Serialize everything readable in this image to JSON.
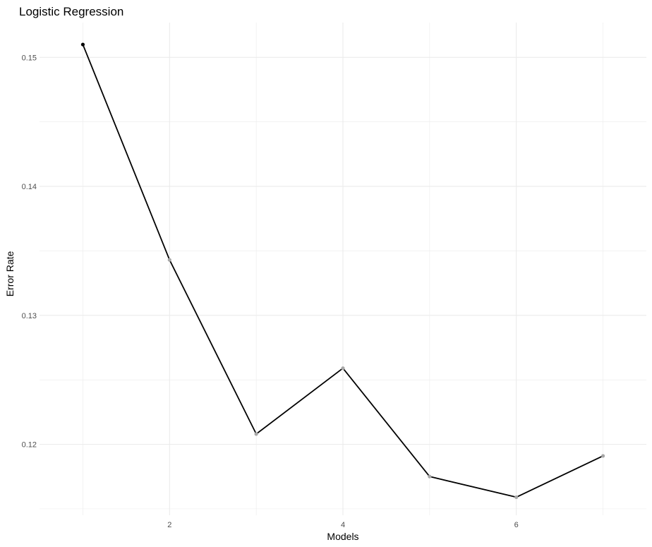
{
  "chart_data": {
    "type": "line",
    "title": "Logistic Regression",
    "xlabel": "Models",
    "ylabel": "Error Rate",
    "x": [
      1,
      2,
      3,
      4,
      5,
      6,
      7
    ],
    "series": [
      {
        "values": [
          0.151,
          0.1343,
          0.1208,
          0.1259,
          0.1175,
          0.1159,
          0.1191
        ]
      }
    ],
    "point_colors": [
      "#000000",
      "#a6a6a6",
      "#a6a6a6",
      "#a6a6a6",
      "#a6a6a6",
      "#a6a6a6",
      "#a6a6a6"
    ],
    "line_color": "#000000",
    "xlim": [
      0.5,
      7.5
    ],
    "ylim": [
      0.1145,
      0.1527
    ],
    "x_ticks": [
      2,
      4,
      6
    ],
    "x_tick_labels": [
      "2",
      "4",
      "6"
    ],
    "y_ticks": [
      0.12,
      0.13,
      0.14,
      0.15
    ],
    "y_tick_labels": [
      "0.12",
      "0.13",
      "0.14",
      "0.15"
    ],
    "grid": true,
    "grid_color": "#ebebeb",
    "legend": "none"
  }
}
